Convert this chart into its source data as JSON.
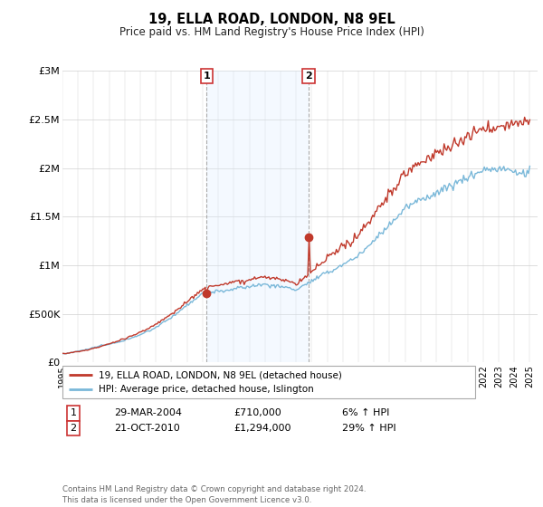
{
  "title": "19, ELLA ROAD, LONDON, N8 9EL",
  "subtitle": "Price paid vs. HM Land Registry's House Price Index (HPI)",
  "footnote": "Contains HM Land Registry data © Crown copyright and database right 2024.\nThis data is licensed under the Open Government Licence v3.0.",
  "legend_line1": "19, ELLA ROAD, LONDON, N8 9EL (detached house)",
  "legend_line2": "HPI: Average price, detached house, Islington",
  "sale1_date": "29-MAR-2004",
  "sale1_price": "£710,000",
  "sale1_hpi": "6% ↑ HPI",
  "sale2_date": "21-OCT-2010",
  "sale2_price": "£1,294,000",
  "sale2_hpi": "29% ↑ HPI",
  "hpi_color": "#7ab8d9",
  "price_color": "#c0392b",
  "bg_shade_color": "#ddeeff",
  "marker_color": "#c0392b",
  "ylim": [
    0,
    3000000
  ],
  "yticks": [
    0,
    500000,
    1000000,
    1500000,
    2000000,
    2500000,
    3000000
  ],
  "ylabel_format": [
    "£0",
    "£500K",
    "£1M",
    "£1.5M",
    "£2M",
    "£2.5M",
    "£3M"
  ],
  "sale1_year": 2004.25,
  "sale1_price_val": 710000,
  "sale2_year": 2010.8,
  "sale2_price_val": 1294000
}
